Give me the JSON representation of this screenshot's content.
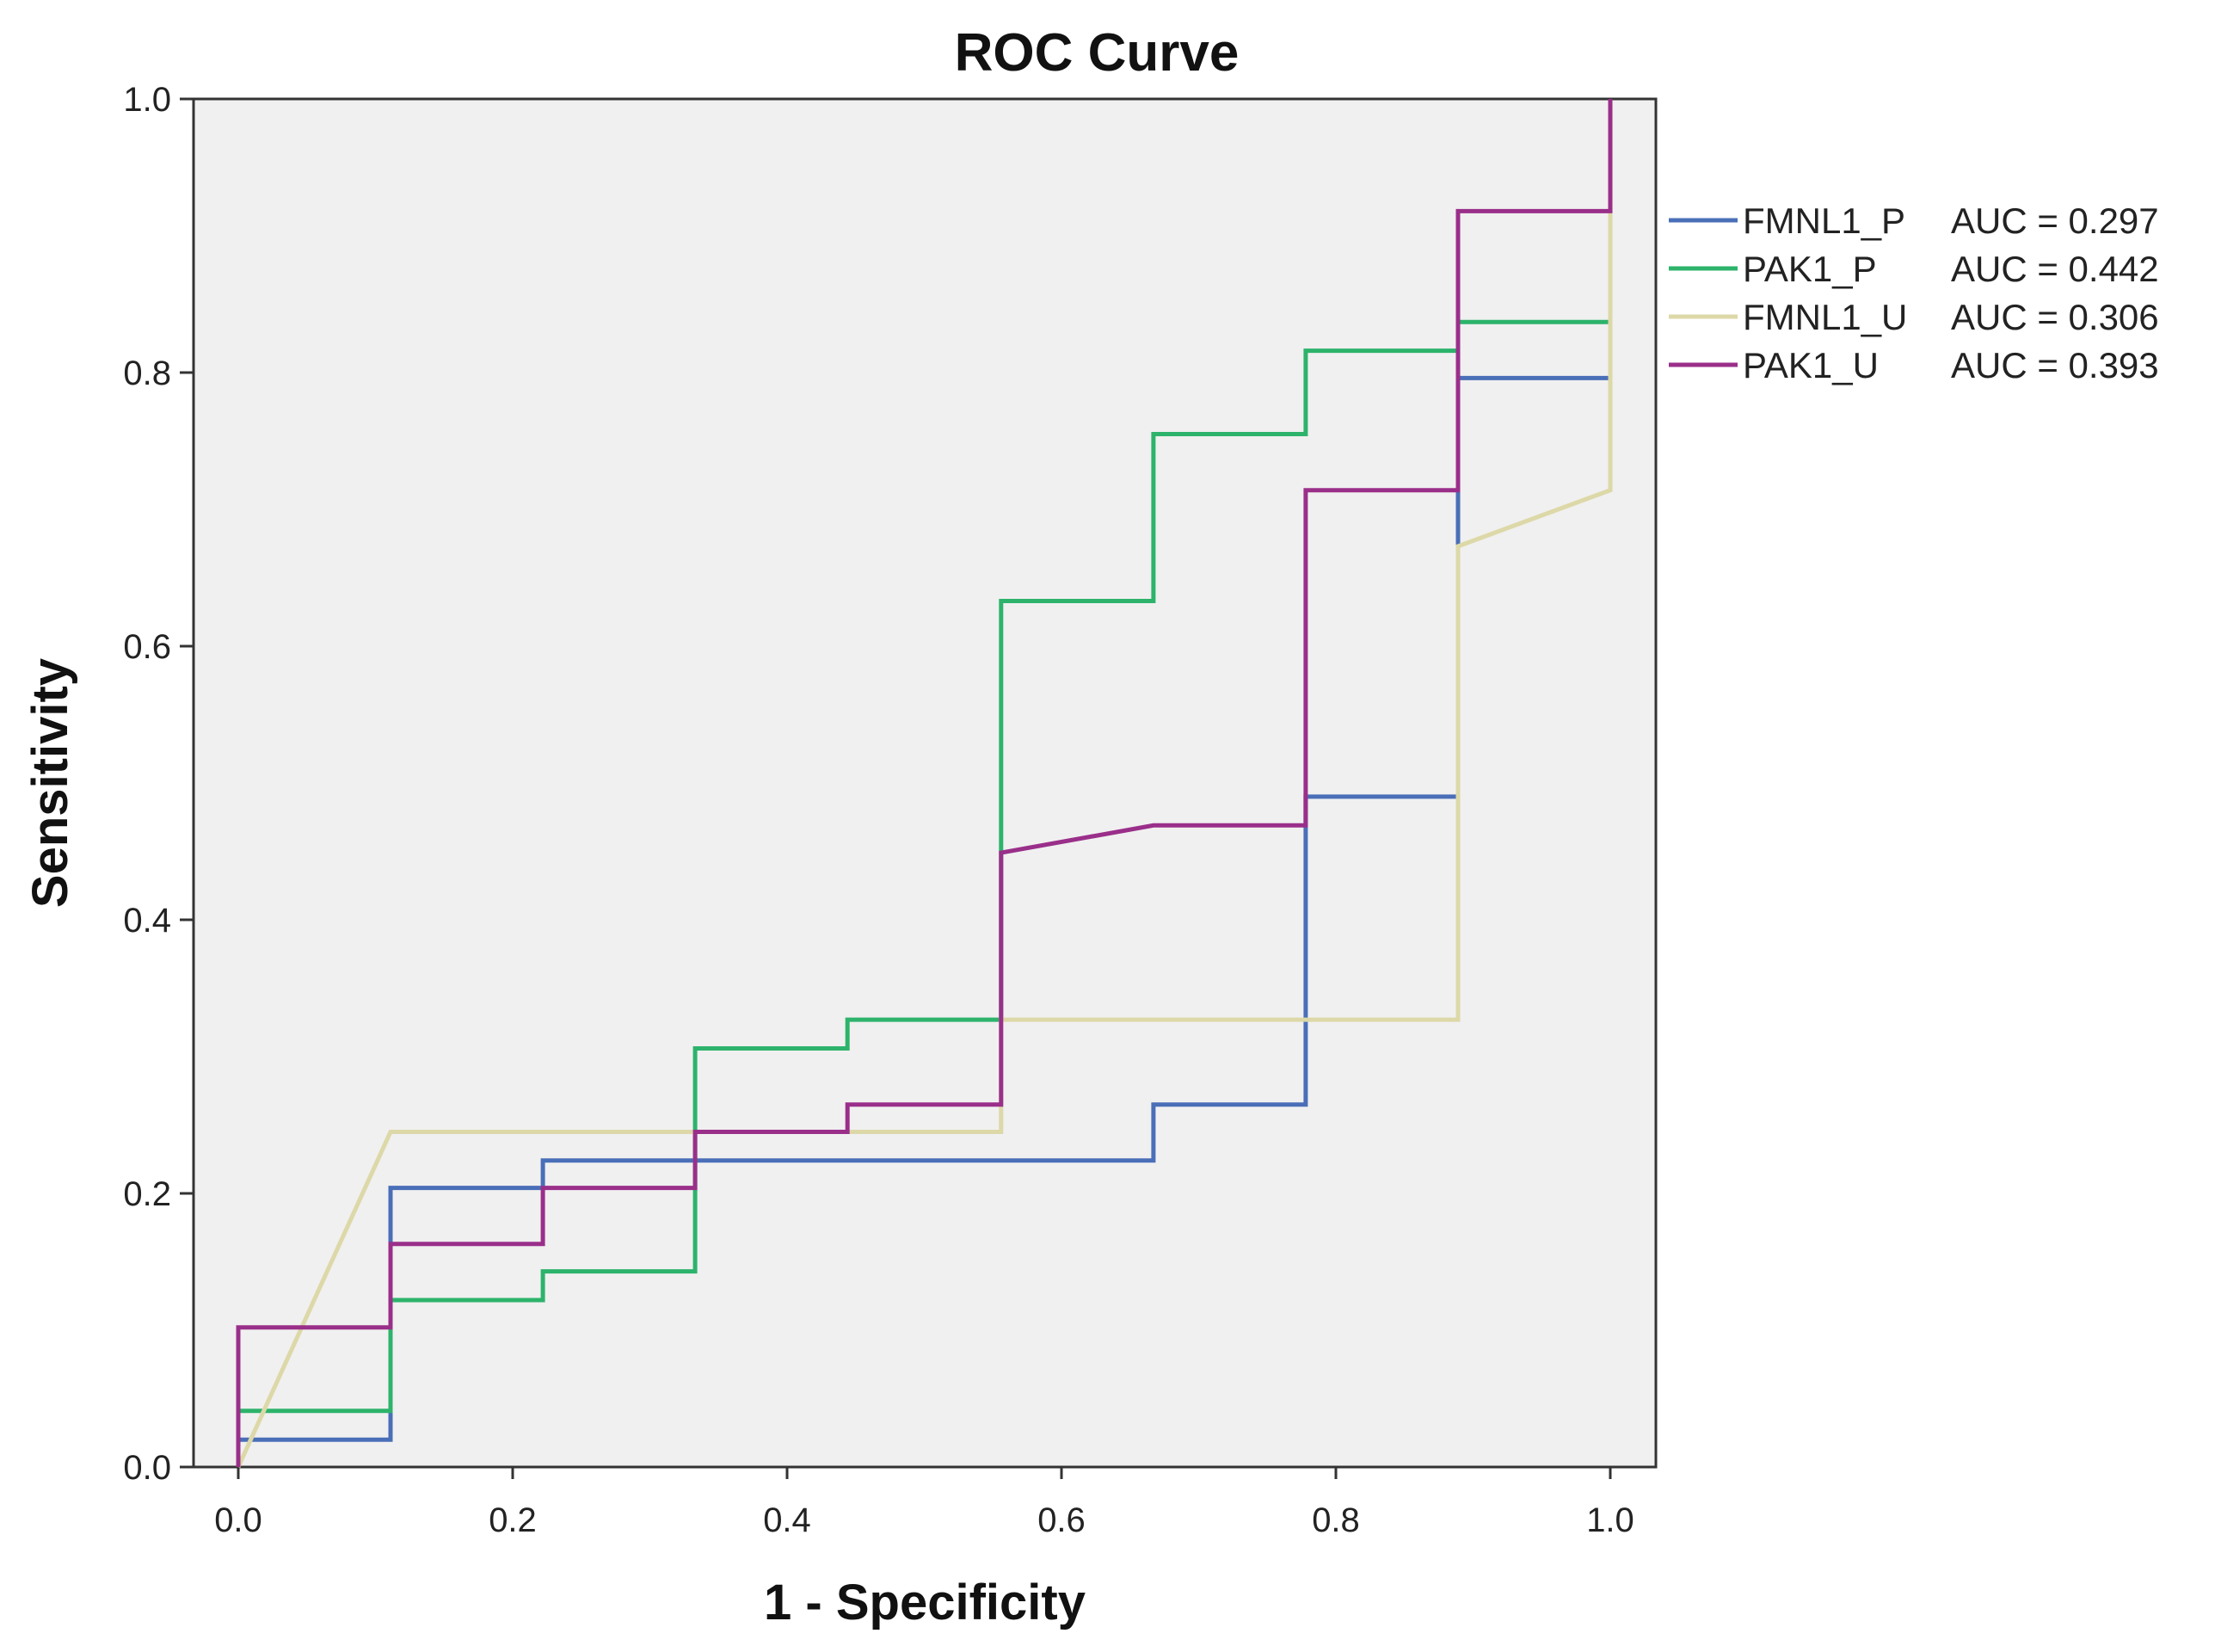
{
  "chart_data": {
    "type": "line",
    "title": "ROC Curve",
    "xlabel": "1 - Specificity",
    "ylabel": "Sensitivity",
    "xlim": [
      0,
      1
    ],
    "ylim": [
      0,
      1
    ],
    "grid": false,
    "x_ticks": [
      "0.0",
      "0.2",
      "0.4",
      "0.6",
      "0.8",
      "1.0"
    ],
    "y_ticks": [
      "0.0",
      "0.2",
      "0.4",
      "0.6",
      "0.8",
      "1.0"
    ],
    "legend_position": "right",
    "plot_background": "#f0f0f0",
    "series": [
      {
        "name": "FMNL1_P",
        "auc_label": "AUC = 0.297",
        "color": "#4a6fb8",
        "points": [
          [
            0,
            0
          ],
          [
            0,
            0.02
          ],
          [
            0.111,
            0.02
          ],
          [
            0.111,
            0.204
          ],
          [
            0.222,
            0.204
          ],
          [
            0.222,
            0.224
          ],
          [
            0.667,
            0.224
          ],
          [
            0.667,
            0.265
          ],
          [
            0.778,
            0.265
          ],
          [
            0.778,
            0.49
          ],
          [
            0.889,
            0.49
          ],
          [
            0.889,
            0.796
          ],
          [
            1,
            0.796
          ],
          [
            1,
            1
          ]
        ]
      },
      {
        "name": "PAK1_P",
        "auc_label": "AUC = 0.442",
        "color": "#2db36b",
        "points": [
          [
            0,
            0
          ],
          [
            0,
            0.041
          ],
          [
            0.111,
            0.041
          ],
          [
            0.111,
            0.122
          ],
          [
            0.222,
            0.122
          ],
          [
            0.222,
            0.143
          ],
          [
            0.333,
            0.143
          ],
          [
            0.333,
            0.306
          ],
          [
            0.444,
            0.306
          ],
          [
            0.444,
            0.327
          ],
          [
            0.556,
            0.327
          ],
          [
            0.556,
            0.633
          ],
          [
            0.667,
            0.633
          ],
          [
            0.667,
            0.755
          ],
          [
            0.778,
            0.755
          ],
          [
            0.778,
            0.816
          ],
          [
            0.889,
            0.816
          ],
          [
            0.889,
            0.837
          ],
          [
            1,
            0.837
          ],
          [
            1,
            1
          ]
        ]
      },
      {
        "name": "FMNL1_U",
        "auc_label": "AUC = 0.306",
        "color": "#ddd8a8",
        "points": [
          [
            0,
            0
          ],
          [
            0.111,
            0.245
          ],
          [
            0.556,
            0.245
          ],
          [
            0.556,
            0.327
          ],
          [
            0.889,
            0.327
          ],
          [
            0.889,
            0.673
          ],
          [
            1,
            0.714
          ],
          [
            1,
            1
          ]
        ]
      },
      {
        "name": "PAK1_U",
        "auc_label": "AUC = 0.393",
        "color": "#9a2f8a",
        "points": [
          [
            0,
            0
          ],
          [
            0,
            0.102
          ],
          [
            0.111,
            0.102
          ],
          [
            0.111,
            0.163
          ],
          [
            0.222,
            0.163
          ],
          [
            0.222,
            0.204
          ],
          [
            0.333,
            0.204
          ],
          [
            0.333,
            0.245
          ],
          [
            0.444,
            0.245
          ],
          [
            0.444,
            0.265
          ],
          [
            0.556,
            0.265
          ],
          [
            0.556,
            0.449
          ],
          [
            0.667,
            0.469
          ],
          [
            0.778,
            0.469
          ],
          [
            0.778,
            0.714
          ],
          [
            0.889,
            0.714
          ],
          [
            0.889,
            0.918
          ],
          [
            1,
            0.918
          ],
          [
            1,
            1
          ]
        ]
      }
    ]
  }
}
